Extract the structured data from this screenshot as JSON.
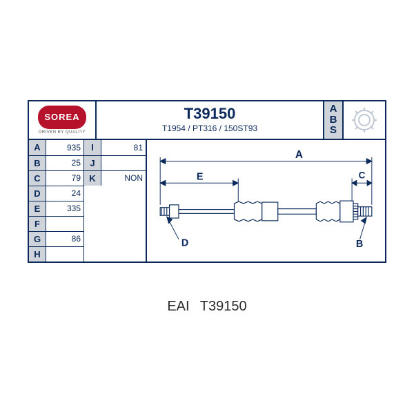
{
  "logo": {
    "text": "SOREA",
    "subtitle": "DRIVEN BY QUALITY"
  },
  "part_number": "T39150",
  "sub_codes": "T1954 / PT316 / 150ST93",
  "abs_label": [
    "A",
    "B",
    "S"
  ],
  "specs_col1": [
    {
      "letter": "A",
      "value": "935"
    },
    {
      "letter": "B",
      "value": "25"
    },
    {
      "letter": "C",
      "value": "79"
    },
    {
      "letter": "D",
      "value": "24"
    },
    {
      "letter": "E",
      "value": "335"
    },
    {
      "letter": "F",
      "value": ""
    },
    {
      "letter": "G",
      "value": "86"
    },
    {
      "letter": "H",
      "value": ""
    }
  ],
  "specs_col2": [
    {
      "letter": "I",
      "value": "81"
    },
    {
      "letter": "J",
      "value": ""
    },
    {
      "letter": "K",
      "value": "NON"
    }
  ],
  "diagram": {
    "labels": {
      "A": "A",
      "E": "E",
      "C": "C",
      "D": "D",
      "B": "B"
    },
    "stroke": "#0b2a5b",
    "dim": "#0b2a5b"
  },
  "caption": {
    "brand": "EAI",
    "code": "T39150"
  },
  "colors": {
    "frame": "#0b2a5b",
    "letter_bg": "#cfd3da",
    "logo_bg": "#b6122b",
    "bg": "#ffffff"
  }
}
